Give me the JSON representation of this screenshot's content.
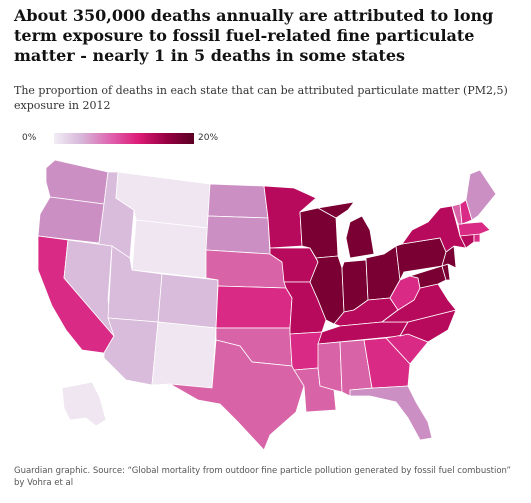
{
  "title": "About 350,000 deaths annually are attributed to long term exposure to fossil fuel-related fine particulate matter - nearly 1 in 5 deaths in some states",
  "subtitle": "The proportion of deaths in each state that can be attributed particulate matter (PM2,5) exposure in 2012",
  "legend": {
    "min_label": "0%",
    "max_label": "20%"
  },
  "source": "Guardian graphic. Source: “Global mortality from outdoor fine particle pollution generated by fossil fuel combustion” by Vohra et al",
  "palette": [
    "#efe6f1",
    "#d9bcdb",
    "#cc8fc4",
    "#d863a6",
    "#d92b86",
    "#b80a5c",
    "#7a0033"
  ],
  "states": {
    "WA": 2,
    "OR": 2,
    "CA": 4,
    "ID": 1,
    "NV": 1,
    "MT": 0,
    "WY": 0,
    "UT": 1,
    "CO": 1,
    "AZ": 1,
    "NM": 0,
    "ND": 2,
    "SD": 2,
    "NE": 3,
    "KS": 4,
    "OK": 3,
    "TX": 3,
    "MN": 5,
    "IA": 5,
    "MO": 5,
    "AR": 4,
    "LA": 3,
    "WI": 6,
    "IL": 6,
    "MI": 6,
    "IN": 6,
    "OH": 6,
    "KY": 5,
    "TN": 5,
    "MS": 3,
    "AL": 3,
    "GA": 4,
    "FL": 2,
    "SC": 4,
    "NC": 5,
    "VA": 5,
    "WV": 4,
    "MD": 6,
    "DE": 6,
    "PA": 6,
    "NJ": 6,
    "NY": 5,
    "CT": 5,
    "RI": 4,
    "MA": 4,
    "VT": 3,
    "NH": 4,
    "ME": 2,
    "AK": 0
  }
}
